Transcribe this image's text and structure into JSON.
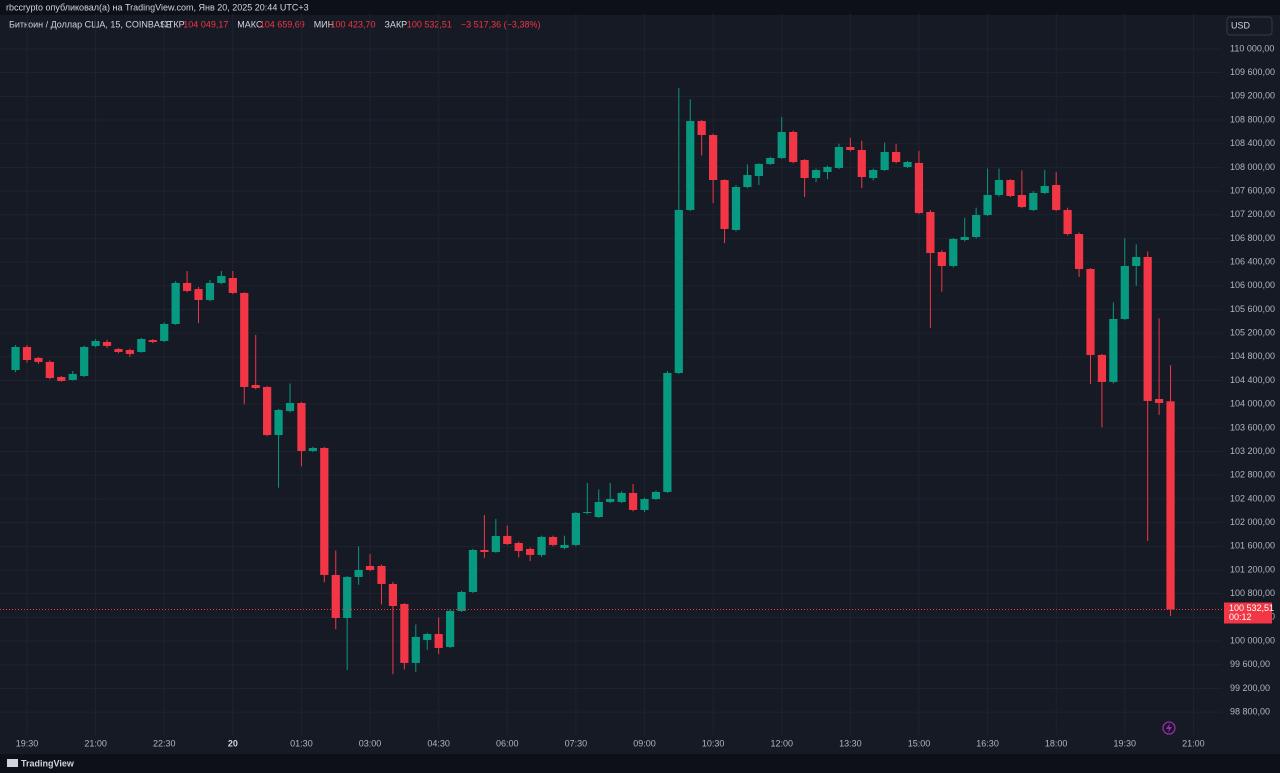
{
  "chart_data": {
    "type": "candlestick",
    "published": "rbccrypto опубликовал(а) на TradingView.com, Янв 20, 2025 20:44 UTC+3",
    "symbol": "Биткоин / Доллар США, 15, COINBASE",
    "ohlc_header": [
      {
        "label": "ОТКР",
        "value": "104 049,17"
      },
      {
        "label": "МАКС",
        "value": "104 659,69"
      },
      {
        "label": "МИН",
        "value": "100 423,70"
      },
      {
        "label": "ЗАКР",
        "value": "100 532,51"
      }
    ],
    "change": "−3 517,36 (−3,38%)",
    "currency": "USD",
    "brand": "TradingView",
    "up_color": "#089981",
    "down_color": "#f23645",
    "grid": true,
    "categories": [
      null,
      "19:30",
      null,
      null,
      null,
      null,
      null,
      "21:00",
      null,
      null,
      null,
      null,
      null,
      "22:30",
      null,
      null,
      null,
      null,
      null,
      "20",
      null,
      null,
      null,
      null,
      null,
      "01:30",
      null,
      null,
      null,
      null,
      null,
      "03:00",
      null,
      null,
      null,
      null,
      null,
      "04:30",
      null,
      null,
      null,
      null,
      null,
      "06:00",
      null,
      null,
      null,
      null,
      null,
      "07:30",
      null,
      null,
      null,
      null,
      null,
      "09:00",
      null,
      null,
      null,
      null,
      null,
      "10:30",
      null,
      null,
      null,
      null,
      null,
      "12:00",
      null,
      null,
      null,
      null,
      null,
      "13:30",
      null,
      null,
      null,
      null,
      null,
      "15:00",
      null,
      null,
      null,
      null,
      null,
      "16:30",
      null,
      null,
      null,
      null,
      null,
      "18:00",
      null,
      null,
      null,
      null,
      null,
      "19:30",
      null,
      null,
      null,
      null,
      null,
      "21:00"
    ],
    "open": [
      104578,
      104967,
      104781,
      104714,
      104460,
      104410,
      104477,
      104984,
      105051,
      104933,
      104916,
      104882,
      105085,
      105068,
      105355,
      106048,
      105946,
      105761,
      106048,
      106132,
      105879,
      104325,
      104291,
      103480,
      103886,
      104021,
      103210,
      103261,
      101116,
      100390,
      101082,
      101268,
      101268,
      100964,
      100626,
      99630,
      100018,
      100119,
      99900,
      100508,
      100829,
      101538,
      101504,
      101775,
      101656,
      101555,
      101454,
      101758,
      101572,
      101623,
      102163,
      102095,
      102349,
      102349,
      102501,
      102214,
      102399,
      102518,
      104528,
      107281,
      108784,
      108547,
      107787,
      106943,
      107669,
      107855,
      108058,
      108159,
      108598,
      108125,
      107821,
      107923,
      107990,
      108345,
      108294,
      107821,
      107956,
      108260,
      108007,
      108075,
      107247,
      106571,
      106335,
      106774,
      106825,
      107196,
      107534,
      107787,
      107534,
      107281,
      107568,
      107703,
      107281,
      106875,
      106284,
      104832,
      104376,
      105440,
      106335,
      106487,
      104088,
      104049.17,
      null,
      null
    ],
    "high": [
      105000,
      105000,
      104800,
      104740,
      104480,
      104560,
      104990,
      105100,
      105090,
      104950,
      104940,
      105120,
      105100,
      105380,
      106080,
      106250,
      105980,
      106100,
      106250,
      106250,
      105890,
      105170,
      104310,
      103920,
      104350,
      104040,
      103280,
      103280,
      101530,
      101100,
      101600,
      101470,
      101290,
      101000,
      100640,
      100280,
      100140,
      100400,
      100540,
      100850,
      101560,
      102130,
      102060,
      101950,
      101680,
      101580,
      101780,
      101780,
      101780,
      102180,
      102670,
      102560,
      102670,
      102530,
      102650,
      102420,
      102540,
      104560,
      109340,
      109150,
      108800,
      108570,
      107800,
      107700,
      108050,
      108070,
      108180,
      108850,
      108620,
      108140,
      107980,
      108030,
      108400,
      108500,
      108450,
      107980,
      108420,
      108400,
      108110,
      108280,
      107280,
      106600,
      106810,
      107150,
      107320,
      107980,
      107980,
      107800,
      107950,
      107600,
      107960,
      107920,
      107320,
      106900,
      106300,
      104850,
      105720,
      106800,
      106700,
      106580,
      105450,
      104659.69,
      null,
      null
    ],
    "low": [
      104540,
      104700,
      104680,
      104420,
      104380,
      104400,
      104460,
      104960,
      104950,
      104860,
      104800,
      104870,
      105030,
      105050,
      105340,
      105890,
      105370,
      105740,
      106030,
      105860,
      104000,
      104250,
      103460,
      102590,
      103860,
      102950,
      103190,
      100990,
      100200,
      99510,
      100950,
      101180,
      100620,
      99440,
      99520,
      99480,
      99850,
      99780,
      99880,
      100490,
      100810,
      101400,
      101490,
      101620,
      101410,
      101350,
      101420,
      101600,
      101550,
      101600,
      102140,
      102080,
      102330,
      102330,
      102190,
      102180,
      102380,
      102500,
      104510,
      107260,
      108200,
      107400,
      106720,
      106920,
      107650,
      107700,
      108040,
      108140,
      108070,
      107500,
      107750,
      107800,
      107970,
      108270,
      107650,
      107780,
      107940,
      108070,
      107990,
      107210,
      105290,
      105900,
      106310,
      106750,
      106800,
      107180,
      107510,
      107500,
      107310,
      107260,
      107550,
      107260,
      106850,
      106150,
      104340,
      103610,
      104350,
      105420,
      106000,
      101690,
      103820,
      100423.7,
      null,
      null
    ],
    "close": [
      104967,
      104747,
      104714,
      104443,
      104393,
      104511,
      104967,
      105068,
      104984,
      104882,
      104849,
      105102,
      105051,
      105355,
      106048,
      105913,
      105761,
      106048,
      106166,
      105879,
      104291,
      104274,
      103480,
      103903,
      104021,
      103210,
      103261,
      101116,
      100390,
      101082,
      101200,
      101200,
      100964,
      100592,
      99630,
      100069,
      100119,
      99883,
      100508,
      100829,
      101538,
      101504,
      101775,
      101639,
      101521,
      101454,
      101758,
      101623,
      101623,
      102163,
      102180,
      102349,
      102400,
      102501,
      102214,
      102399,
      102518,
      104528,
      107281,
      108784,
      108547,
      107787,
      106960,
      107669,
      107872,
      108058,
      108159,
      108598,
      108091,
      107821,
      107956,
      108007,
      108345,
      108294,
      107838,
      107956,
      108260,
      108091,
      108091,
      107230,
      106554,
      106335,
      106791,
      106825,
      107196,
      107534,
      107787,
      107517,
      107331,
      107568,
      107686,
      107281,
      106875,
      106284,
      104832,
      104376,
      105440,
      106335,
      106487,
      104055,
      104021,
      100532.51,
      null,
      null
    ],
    "xlim": [
      -1.36,
      105.5
    ],
    "ylim": [
      98413,
      110591
    ],
    "yticks": [
      {
        "value": 98800,
        "label": "98 800,00"
      },
      {
        "value": 99200,
        "label": "99 200,00"
      },
      {
        "value": 99600,
        "label": "99 600,00"
      },
      {
        "value": 100000,
        "label": "100 000,00"
      },
      {
        "value": 100400,
        "label": "100 400,00"
      },
      {
        "value": 100800,
        "label": "100 800,00"
      },
      {
        "value": 101200,
        "label": "101 200,00"
      },
      {
        "value": 101600,
        "label": "101 600,00"
      },
      {
        "value": 102000,
        "label": "102 000,00"
      },
      {
        "value": 102400,
        "label": "102 400,00"
      },
      {
        "value": 102800,
        "label": "102 800,00"
      },
      {
        "value": 103200,
        "label": "103 200,00"
      },
      {
        "value": 103600,
        "label": "103 600,00"
      },
      {
        "value": 104000,
        "label": "104 000,00"
      },
      {
        "value": 104400,
        "label": "104 400,00"
      },
      {
        "value": 104800,
        "label": "104 800,00"
      },
      {
        "value": 105200,
        "label": "105 200,00"
      },
      {
        "value": 105600,
        "label": "105 600,00"
      },
      {
        "value": 106000,
        "label": "106 000,00"
      },
      {
        "value": 106400,
        "label": "106 400,00"
      },
      {
        "value": 106800,
        "label": "106 800,00"
      },
      {
        "value": 107200,
        "label": "107 200,00"
      },
      {
        "value": 107600,
        "label": "107 600,00"
      },
      {
        "value": 108000,
        "label": "108 000,00"
      },
      {
        "value": 108400,
        "label": "108 400,00"
      },
      {
        "value": 108800,
        "label": "108 800,00"
      },
      {
        "value": 109200,
        "label": "109 200,00"
      },
      {
        "value": 109600,
        "label": "109 600,00"
      },
      {
        "value": 110000,
        "label": "110 000,00"
      }
    ],
    "last_price": {
      "value": 100532.51,
      "label": "100 532,51"
    },
    "countdown": "00:12"
  }
}
